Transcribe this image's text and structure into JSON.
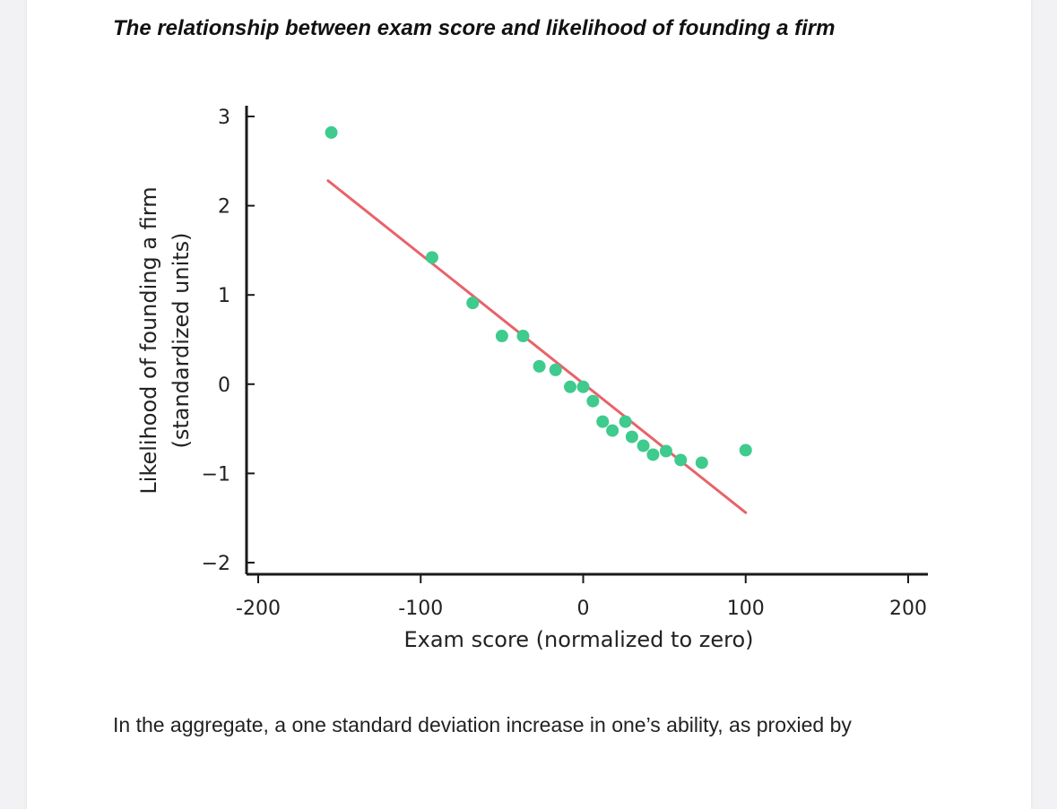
{
  "article": {
    "title": "The relationship between exam score and likelihood of founding a firm",
    "body_text": "In the aggregate, a one standard deviation increase in one’s ability, as proxied by"
  },
  "chart_data": {
    "type": "scatter",
    "title": "",
    "xlabel": "Exam score (normalized to zero)",
    "ylabel_lines": [
      "Likelihood of founding a firm",
      "(standardized units)"
    ],
    "xlim": [
      -200,
      200
    ],
    "ylim": [
      -2,
      3
    ],
    "x_ticks": [
      -200,
      -100,
      0,
      100,
      200
    ],
    "x_tick_labels": [
      "-200",
      "-100",
      "0",
      "100",
      "200"
    ],
    "y_ticks": [
      3,
      2,
      1,
      0,
      -1,
      -2
    ],
    "y_tick_labels": [
      "3",
      "2",
      "1",
      "0",
      "−1",
      "−2"
    ],
    "grid": false,
    "legend": "none",
    "points_color": "#3ecb8d",
    "fit_line_color": "#e8636a",
    "series": [
      {
        "points": [
          {
            "x": -155,
            "y": 2.82
          },
          {
            "x": -93,
            "y": 1.42
          },
          {
            "x": -68,
            "y": 0.91
          },
          {
            "x": -50,
            "y": 0.54
          },
          {
            "x": -37,
            "y": 0.54
          },
          {
            "x": -27,
            "y": 0.2
          },
          {
            "x": -17,
            "y": 0.16
          },
          {
            "x": -8,
            "y": -0.03
          },
          {
            "x": 0,
            "y": -0.03
          },
          {
            "x": 6,
            "y": -0.19
          },
          {
            "x": 12,
            "y": -0.42
          },
          {
            "x": 18,
            "y": -0.52
          },
          {
            "x": 26,
            "y": -0.42
          },
          {
            "x": 30,
            "y": -0.59
          },
          {
            "x": 37,
            "y": -0.69
          },
          {
            "x": 43,
            "y": -0.79
          },
          {
            "x": 51,
            "y": -0.75
          },
          {
            "x": 60,
            "y": -0.85
          },
          {
            "x": 73,
            "y": -0.88
          },
          {
            "x": 100,
            "y": -0.74
          }
        ]
      }
    ],
    "fit_line": {
      "x": [
        -157,
        100
      ],
      "y": [
        2.28,
        -1.44
      ]
    }
  }
}
